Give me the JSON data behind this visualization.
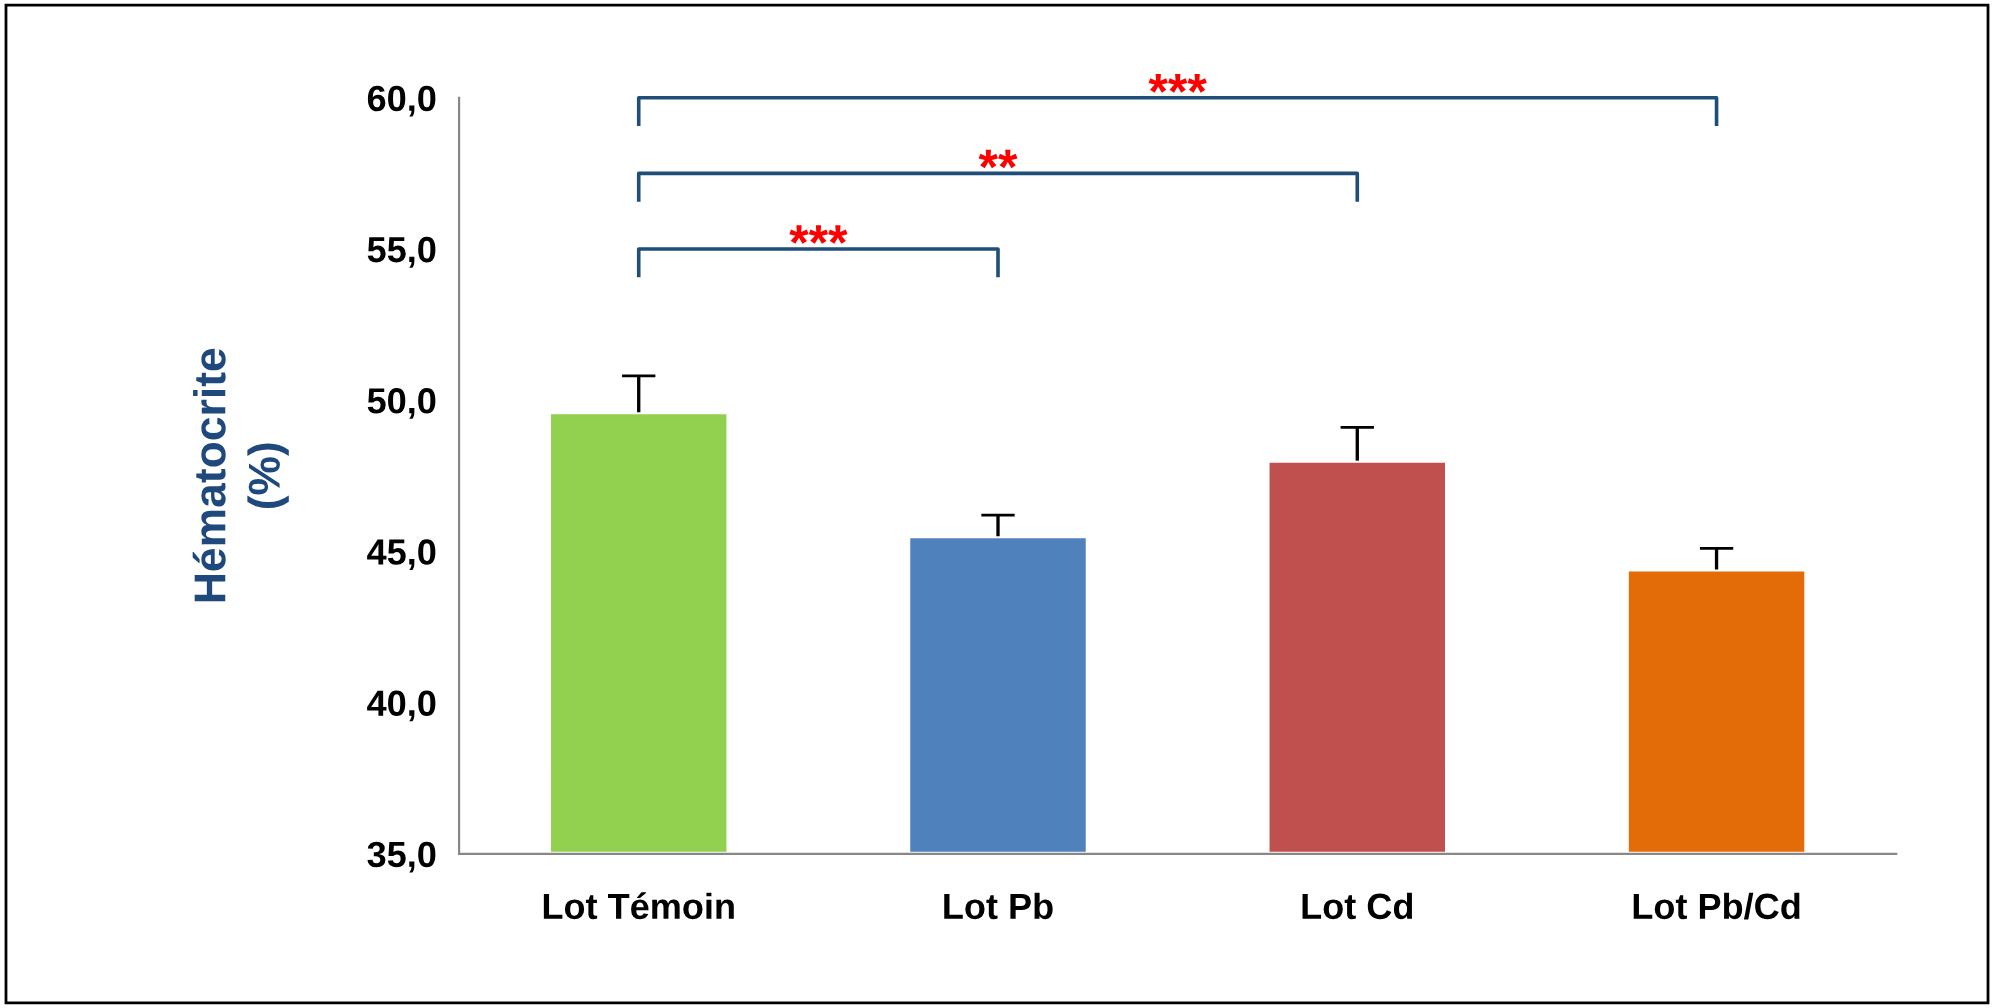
{
  "chart_data": {
    "type": "bar",
    "ylabel": "Hématocrite\n(%)",
    "categories": [
      "Lot Témoin",
      "Lot Pb",
      "Lot Cd",
      "Lot Pb/Cd"
    ],
    "values": [
      49.6,
      45.5,
      48.0,
      44.4
    ],
    "colors": [
      "#92d050",
      "#4f81bd",
      "#c0504d",
      "#e36c09"
    ],
    "errors": [
      [
        49.6,
        50.8
      ],
      [
        45.5,
        46.2
      ],
      [
        48.0,
        49.1
      ],
      [
        44.4,
        45.1
      ]
    ],
    "ylim": [
      35,
      60
    ],
    "yticks": [
      {
        "value": 35,
        "label": "35,0"
      },
      {
        "value": 40,
        "label": "40,0"
      },
      {
        "value": 45,
        "label": "45,0"
      },
      {
        "value": 50,
        "label": "50,0"
      },
      {
        "value": 55,
        "label": "55,0"
      },
      {
        "value": 60,
        "label": "60,0"
      }
    ],
    "annotations": [
      "***",
      "**",
      "***"
    ],
    "grid": false
  }
}
